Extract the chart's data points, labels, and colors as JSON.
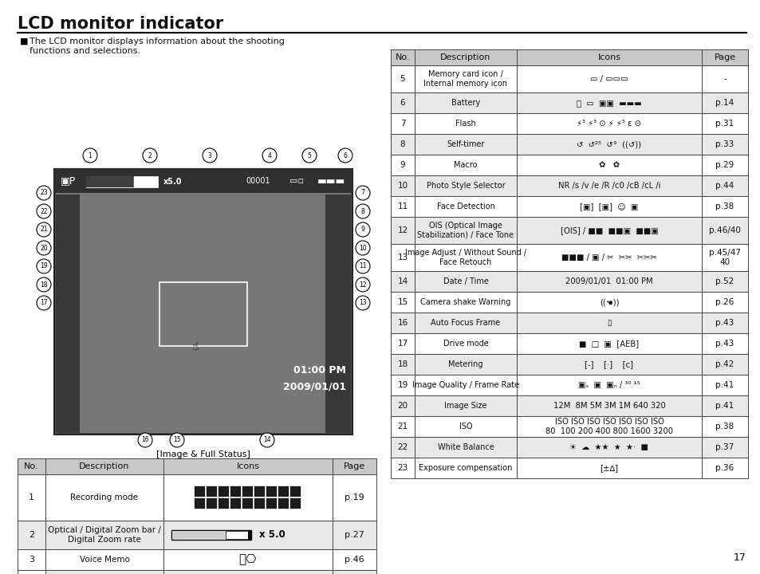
{
  "title": "LCD monitor indicator",
  "bg_color": "#ffffff",
  "title_fontsize": 15,
  "description_text": "The LCD monitor displays information about the shooting\nfunctions and selections.",
  "image_caption": "[Image & Full Status]",
  "left_table_header": [
    "No.",
    "Description",
    "Icons",
    "Page"
  ],
  "right_table_header": [
    "No.",
    "Description",
    "Icons",
    "Page"
  ],
  "page_number": "17",
  "header_bg": "#c8c8c8",
  "row_bg_alt": "#e8e8e8",
  "row_bg": "#ffffff",
  "border_color": "#444444",
  "text_color": "#111111",
  "camera_bg": "#505050",
  "camera_top_bar": "#404040",
  "camera_photo": "#909090"
}
